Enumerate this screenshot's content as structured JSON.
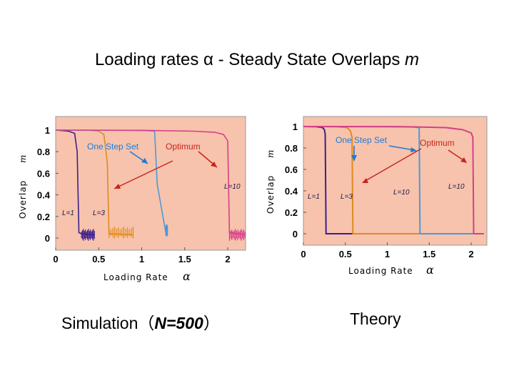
{
  "title_prefix": "Loading rates α  -  Steady State Overlaps ",
  "title_var": "m",
  "captions": {
    "simulation_prefix": "Simulation（",
    "simulation_var": "N=500",
    "simulation_suffix": "）",
    "theory": "Theory"
  },
  "annotations": {
    "one_step_set": "One Step Set",
    "optimum": "Optimum"
  },
  "axes": {
    "xlabel": "Loading Rate",
    "xlabel_symbol": "α",
    "ylabel": "Overlap",
    "ylabel_symbol": "m",
    "x_ticks": [
      "0",
      "0.5",
      "1",
      "1.5",
      "2"
    ],
    "y_ticks": [
      "0",
      "0.2",
      "0.4",
      "0.6",
      "0.8",
      "1"
    ]
  },
  "colors": {
    "plot_bg": "#f7c3ad",
    "L1": "#3d1f8a",
    "L3": "#e08a1e",
    "L10_step": "#4b9ad6",
    "L10_opt": "#d63f8a",
    "arrow_blue": "#1f7ad6",
    "arrow_red": "#c8251c"
  },
  "chart_data": [
    {
      "type": "line",
      "xlabel": "Loading Rate α",
      "ylabel": "Overlap m",
      "xlim": [
        0,
        2.2
      ],
      "ylim": [
        0,
        1
      ],
      "series": [
        {
          "name": "L=1",
          "label_text": "L=1",
          "x": [
            0,
            0.15,
            0.22,
            0.25,
            0.27,
            0.3,
            0.45
          ],
          "y": [
            1,
            0.99,
            0.97,
            0.8,
            0.05,
            0.04,
            0.03
          ]
        },
        {
          "name": "L=3",
          "label_text": "L=3",
          "x": [
            0,
            0.4,
            0.5,
            0.56,
            0.6,
            0.62,
            0.9
          ],
          "y": [
            1,
            0.998,
            0.99,
            0.96,
            0.7,
            0.04,
            0.03
          ]
        },
        {
          "name": "L=10 One Step Set",
          "label_text": "",
          "x": [
            0,
            0.8,
            1.05,
            1.15,
            1.18,
            1.28,
            1.3
          ],
          "y": [
            1,
            0.998,
            0.995,
            0.99,
            0.5,
            0.05,
            0.03
          ]
        },
        {
          "name": "L=10 Optimum",
          "label_text": "L=10",
          "x": [
            0,
            1.0,
            1.6,
            1.85,
            1.95,
            2.0,
            2.02,
            2.2
          ],
          "y": [
            1,
            0.998,
            0.99,
            0.98,
            0.96,
            0.9,
            0.05,
            0.03
          ]
        }
      ]
    },
    {
      "type": "line",
      "xlabel": "Loading Rate α",
      "ylabel": "Overlap m",
      "xlim": [
        0,
        2.15
      ],
      "ylim": [
        0,
        1
      ],
      "series": [
        {
          "name": "L=1",
          "label_text": "L=1",
          "x": [
            0,
            0.15,
            0.23,
            0.25,
            0.26,
            0.27,
            0.3,
            2.15
          ],
          "y": [
            1,
            0.998,
            0.99,
            0.97,
            0.93,
            0,
            0,
            0
          ]
        },
        {
          "name": "L=3",
          "label_text": "L=3",
          "x": [
            0,
            0.4,
            0.52,
            0.56,
            0.58,
            0.59,
            2.15
          ],
          "y": [
            1,
            0.998,
            0.99,
            0.96,
            0.9,
            0,
            0
          ]
        },
        {
          "name": "L=10 One Step Set",
          "label_text": "L=10",
          "x": [
            0,
            1.0,
            1.3,
            1.38,
            1.39,
            2.15
          ],
          "y": [
            1,
            0.999,
            0.996,
            0.99,
            0,
            0
          ]
        },
        {
          "name": "L=10 Optimum",
          "label_text": "L=10",
          "x": [
            0,
            1.2,
            1.7,
            1.9,
            2.0,
            2.02,
            2.03,
            2.15
          ],
          "y": [
            1,
            0.998,
            0.99,
            0.97,
            0.94,
            0.9,
            0,
            0
          ]
        }
      ]
    }
  ]
}
